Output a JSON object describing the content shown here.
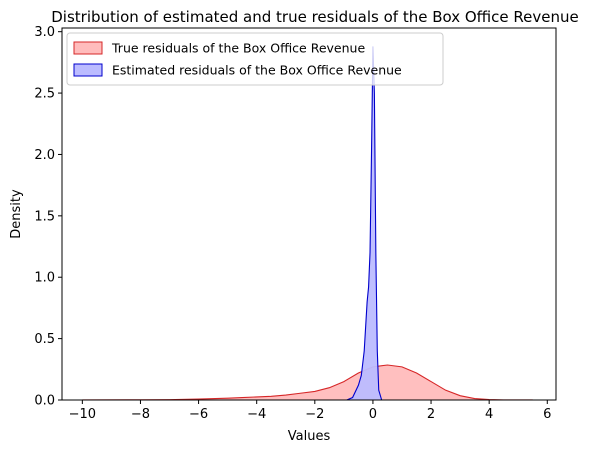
{
  "chart_data": {
    "type": "area",
    "title": "Distribution of estimated and true residuals of the Box Office Revenue",
    "xlabel": "Values",
    "ylabel": "Density",
    "xlim": [
      -10.7,
      6.3
    ],
    "ylim": [
      0,
      3.03
    ],
    "xticks": [
      -10,
      -8,
      -6,
      -4,
      -2,
      0,
      2,
      4,
      6
    ],
    "yticks": [
      0.0,
      0.5,
      1.0,
      1.5,
      2.0,
      2.5,
      3.0
    ],
    "xtick_labels": [
      "−10",
      "−8",
      "−6",
      "−4",
      "−2",
      "0",
      "2",
      "4",
      "6"
    ],
    "ytick_labels": [
      "0.0",
      "0.5",
      "1.0",
      "1.5",
      "2.0",
      "2.5",
      "3.0"
    ],
    "grid": false,
    "legend_position": "top-left",
    "series": [
      {
        "name": "True residuals of the Box Office Revenue",
        "fill": "#ffbcbc",
        "stroke": "#d62728",
        "x": [
          -10,
          -8,
          -7,
          -6,
          -5,
          -4.5,
          -4,
          -3.5,
          -3,
          -2.5,
          -2,
          -1.5,
          -1,
          -0.5,
          0,
          0.5,
          1,
          1.5,
          2,
          2.5,
          3,
          3.5,
          4,
          4.5,
          5,
          5.5
        ],
        "y": [
          0.001,
          0.002,
          0.003,
          0.008,
          0.015,
          0.02,
          0.025,
          0.03,
          0.04,
          0.055,
          0.07,
          0.1,
          0.15,
          0.22,
          0.27,
          0.285,
          0.27,
          0.22,
          0.15,
          0.08,
          0.035,
          0.012,
          0.004,
          0.001,
          0.0005,
          0.0002
        ]
      },
      {
        "name": "Estimated residuals of the Box Office Revenue",
        "fill": "#bcbcff",
        "stroke": "#0000cc",
        "x": [
          -0.9,
          -0.7,
          -0.5,
          -0.4,
          -0.3,
          -0.2,
          -0.15,
          -0.1,
          -0.05,
          0,
          0.05,
          0.1,
          0.15,
          0.2,
          0.3
        ],
        "y": [
          0,
          0.02,
          0.12,
          0.2,
          0.4,
          0.8,
          0.92,
          1.2,
          2.0,
          2.88,
          2.5,
          1.2,
          0.4,
          0.08,
          0
        ]
      }
    ]
  }
}
